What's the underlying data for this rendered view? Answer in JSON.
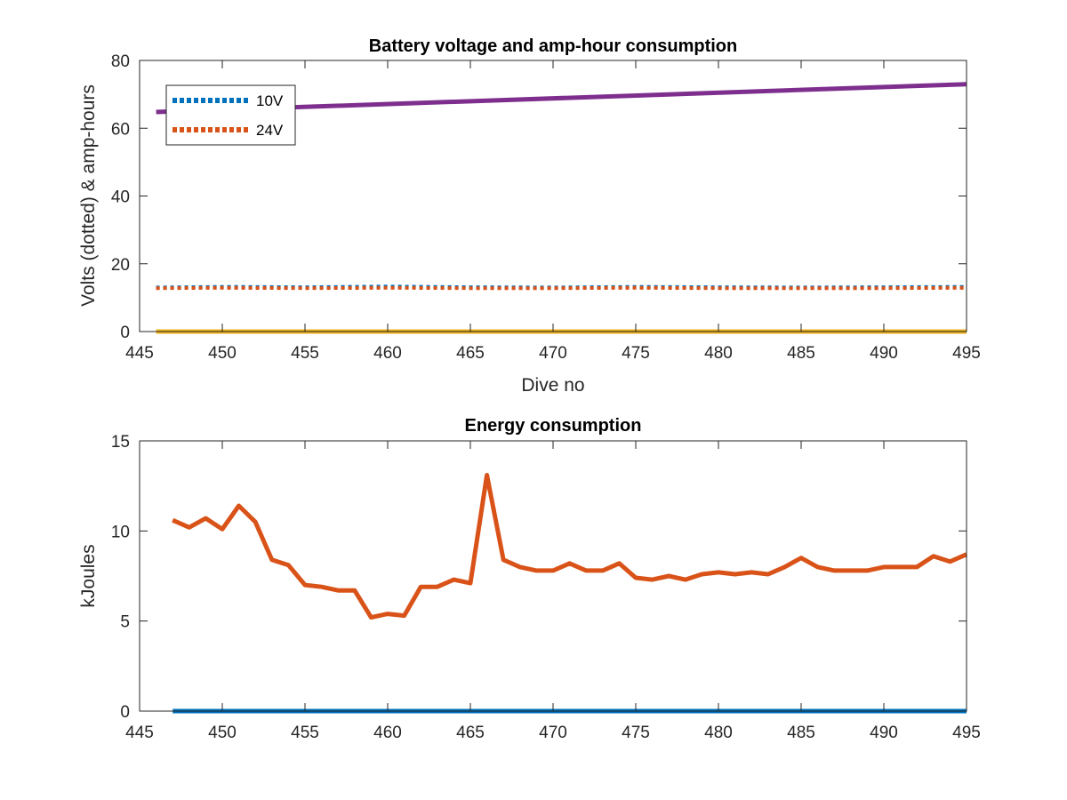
{
  "colors": {
    "v10": "#0072BD",
    "v24": "#D95319",
    "ah_purple": "#7E2F8E",
    "ah_yellow": "#EDB120",
    "energy_main": "#D95319",
    "energy_zero": "#0072BD",
    "axis": "#262626"
  },
  "chart_data": [
    {
      "id": "voltage",
      "type": "line",
      "title": "Battery voltage and amp-hour consumption",
      "xlabel": "Dive no",
      "ylabel": "Volts (dotted) & amp-hours",
      "xlim": [
        445,
        495
      ],
      "ylim": [
        0,
        80
      ],
      "xticks": [
        445,
        450,
        455,
        460,
        465,
        470,
        475,
        480,
        485,
        490,
        495
      ],
      "yticks": [
        0,
        20,
        40,
        60,
        80
      ],
      "legend_position": "top-left",
      "series": [
        {
          "name": "10V",
          "style": "dotted",
          "color_key": "v10",
          "x": [
            446,
            450,
            455,
            460,
            465,
            470,
            475,
            480,
            485,
            490,
            495
          ],
          "y": [
            13.0,
            13.2,
            13.1,
            13.3,
            13.1,
            13.0,
            13.2,
            13.1,
            13.0,
            13.1,
            13.2
          ]
        },
        {
          "name": "24V",
          "style": "dotted",
          "color_key": "v24",
          "x": [
            446,
            450,
            455,
            460,
            465,
            470,
            475,
            480,
            485,
            490,
            495
          ],
          "y": [
            12.8,
            12.9,
            12.8,
            12.9,
            12.8,
            12.8,
            12.9,
            12.8,
            12.8,
            12.8,
            12.9
          ]
        },
        {
          "style": "solid",
          "color_key": "ah_purple",
          "x": [
            446,
            495
          ],
          "y": [
            64.8,
            73.0
          ]
        },
        {
          "style": "solid",
          "color_key": "ah_yellow",
          "x": [
            446,
            495
          ],
          "y": [
            0,
            0
          ]
        }
      ]
    },
    {
      "id": "energy",
      "type": "line",
      "title": "Energy consumption",
      "xlabel": "",
      "ylabel": "kJoules",
      "xlim": [
        445,
        495
      ],
      "ylim": [
        0,
        15
      ],
      "xticks": [
        445,
        450,
        455,
        460,
        465,
        470,
        475,
        480,
        485,
        490,
        495
      ],
      "yticks": [
        0,
        5,
        10,
        15
      ],
      "series": [
        {
          "style": "solid",
          "color_key": "energy_main",
          "x": [
            447,
            448,
            449,
            450,
            451,
            452,
            453,
            454,
            455,
            456,
            457,
            458,
            459,
            460,
            461,
            462,
            463,
            464,
            465,
            466,
            467,
            468,
            469,
            470,
            471,
            472,
            473,
            474,
            475,
            476,
            477,
            478,
            479,
            480,
            481,
            482,
            483,
            484,
            485,
            486,
            487,
            488,
            489,
            490,
            491,
            492,
            493,
            494,
            495
          ],
          "y": [
            10.6,
            10.2,
            10.7,
            10.1,
            11.4,
            10.5,
            8.4,
            8.1,
            7.0,
            6.9,
            6.7,
            6.7,
            5.2,
            5.4,
            5.3,
            6.9,
            6.9,
            7.3,
            7.1,
            13.1,
            8.4,
            8.0,
            7.8,
            7.8,
            8.2,
            7.8,
            7.8,
            8.2,
            7.4,
            7.3,
            7.5,
            7.3,
            7.6,
            7.7,
            7.6,
            7.7,
            7.6,
            8.0,
            8.5,
            8.0,
            7.8,
            7.8,
            7.8,
            8.0,
            8.0,
            8.0,
            8.6,
            8.3,
            8.7
          ]
        },
        {
          "style": "solid",
          "color_key": "energy_zero",
          "x": [
            447,
            495
          ],
          "y": [
            0,
            0
          ]
        }
      ]
    }
  ]
}
